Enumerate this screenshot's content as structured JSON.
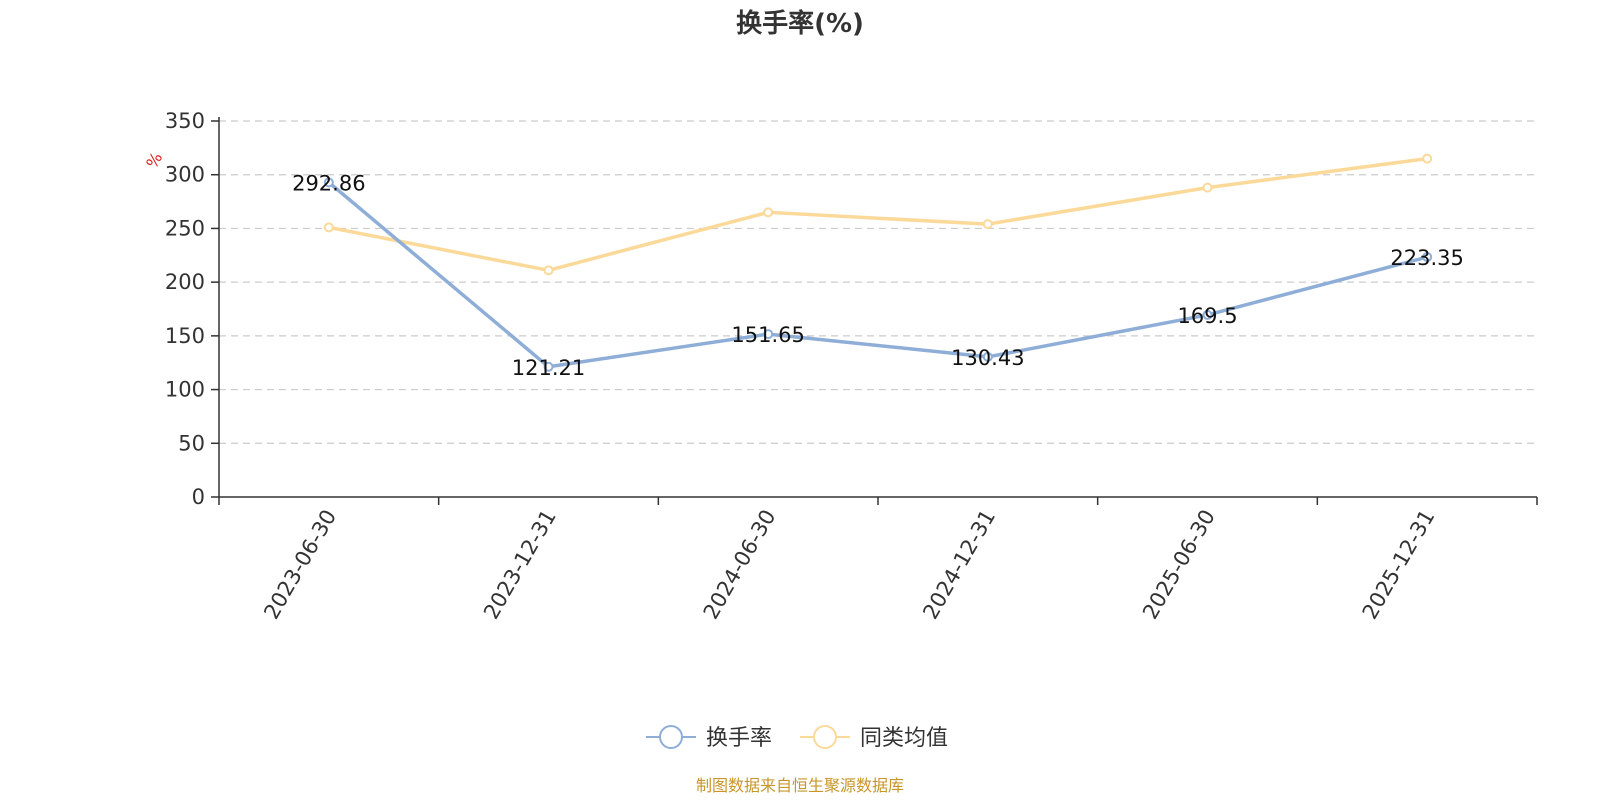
{
  "chart_data": {
    "type": "line",
    "title": "换手率(%)",
    "y_unit": "%",
    "categories": [
      "2023-06-30",
      "2023-12-31",
      "2024-06-30",
      "2024-12-31",
      "2025-06-30",
      "2025-12-31"
    ],
    "series": [
      {
        "name": "换手率",
        "color": "#8eaed8",
        "values": [
          292.86,
          121.21,
          151.65,
          130.43,
          169.5,
          223.35
        ],
        "data_labels": [
          "292.86",
          "121.21",
          "151.65",
          "130.43",
          "169.5",
          "223.35"
        ]
      },
      {
        "name": "同类均值",
        "color": "#fbd999",
        "values": [
          251,
          211,
          265,
          254,
          288,
          315
        ]
      }
    ],
    "ylim": [
      0,
      350
    ],
    "yticks": [
      0,
      50,
      100,
      150,
      200,
      250,
      300,
      350
    ],
    "grid": true,
    "legend_position": "bottom-center"
  },
  "source_note": "制图数据来自恒生聚源数据库"
}
